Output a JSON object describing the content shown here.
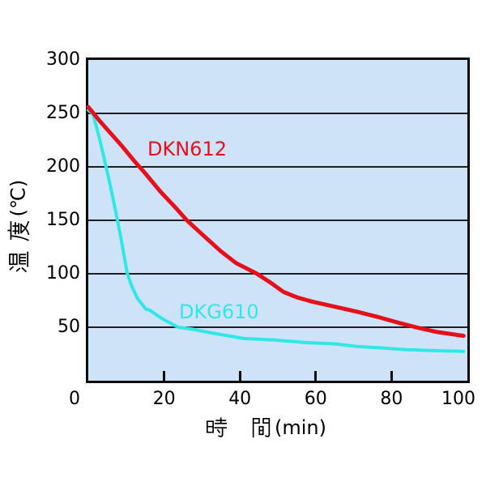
{
  "chart_data": {
    "type": "line",
    "title": "",
    "xlabel": "時 間(min)",
    "ylabel": "温 度(℃)",
    "x_unit_display": "(min)",
    "y_unit_display": "(℃)",
    "xlim": [
      0,
      100
    ],
    "ylim": [
      0,
      300
    ],
    "x_ticks": [
      0,
      20,
      40,
      60,
      80,
      100
    ],
    "y_ticks": [
      300,
      250,
      200,
      150,
      100,
      50
    ],
    "grid": "horizontal lines every 50 degrees",
    "plot_background": "#cfe3f8",
    "legend_position": "inline labels near curves",
    "series": [
      {
        "name": "DKN612",
        "color": "#e5111a",
        "points": [
          [
            0,
            256
          ],
          [
            3,
            243
          ],
          [
            6,
            231
          ],
          [
            9,
            219
          ],
          [
            12,
            206
          ],
          [
            15,
            194
          ],
          [
            19,
            177
          ],
          [
            23,
            162
          ],
          [
            26,
            150
          ],
          [
            30,
            137
          ],
          [
            35,
            121
          ],
          [
            39,
            110
          ],
          [
            44.5,
            100
          ],
          [
            48,
            92
          ],
          [
            51.5,
            83
          ],
          [
            55,
            78
          ],
          [
            59,
            74
          ],
          [
            64,
            70
          ],
          [
            71,
            64.5
          ],
          [
            77,
            59
          ],
          [
            82,
            54
          ],
          [
            87,
            49.5
          ],
          [
            92,
            45.5
          ],
          [
            99,
            42
          ]
        ]
      },
      {
        "name": "DKG610",
        "color": "#30e7e8",
        "points": [
          [
            0,
            253
          ],
          [
            1.2,
            250
          ],
          [
            3,
            226
          ],
          [
            4.7,
            200
          ],
          [
            6.2,
            176
          ],
          [
            7.7,
            150
          ],
          [
            9,
            126
          ],
          [
            10.3,
            100
          ],
          [
            11.5,
            88
          ],
          [
            13,
            77
          ],
          [
            14.3,
            71
          ],
          [
            15.2,
            67
          ],
          [
            16.2,
            66
          ],
          [
            18,
            61.5
          ],
          [
            20,
            57
          ],
          [
            23.7,
            50
          ],
          [
            27,
            48.5
          ],
          [
            32,
            45
          ],
          [
            37,
            42
          ],
          [
            41,
            39.5
          ],
          [
            49,
            38
          ],
          [
            58,
            35.5
          ],
          [
            65,
            34.5
          ],
          [
            71,
            32
          ],
          [
            78,
            30.5
          ],
          [
            84,
            29
          ],
          [
            92,
            28
          ],
          [
            99,
            27.5
          ]
        ]
      }
    ]
  }
}
